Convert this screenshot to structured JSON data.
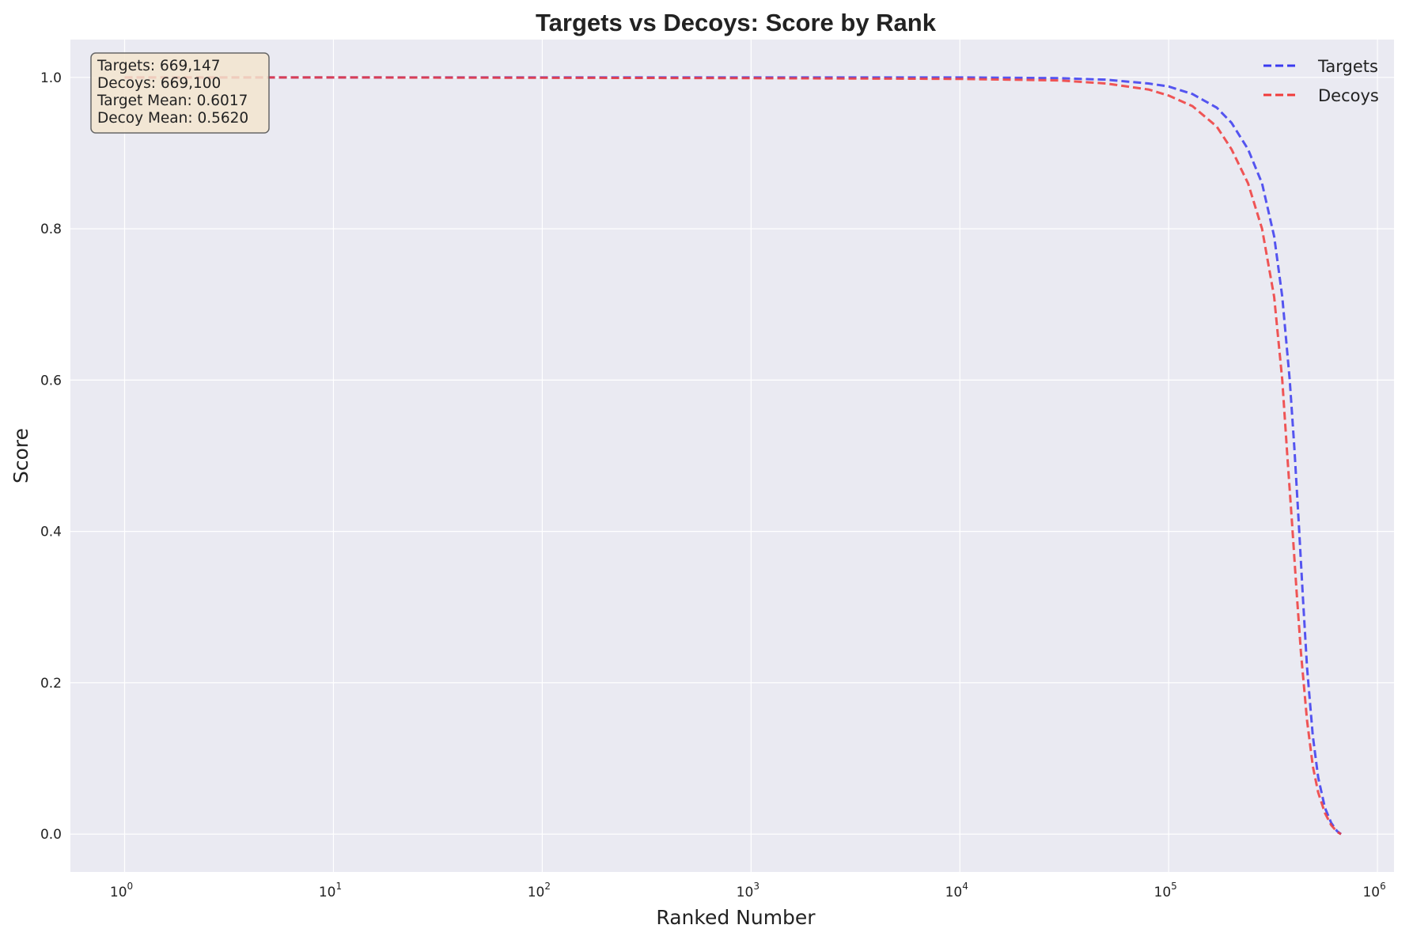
{
  "chart_data": {
    "type": "line",
    "title": "Targets vs Decoys: Score by Rank",
    "xlabel": "Ranked Number",
    "ylabel": "Score",
    "xscale": "log",
    "xlim": [
      0.55,
      1200000
    ],
    "ylim": [
      -0.05,
      1.05
    ],
    "x_ticks": [
      {
        "value": 1,
        "base": "10",
        "exp": "0"
      },
      {
        "value": 10,
        "base": "10",
        "exp": "1"
      },
      {
        "value": 100,
        "base": "10",
        "exp": "2"
      },
      {
        "value": 1000,
        "base": "10",
        "exp": "3"
      },
      {
        "value": 10000,
        "base": "10",
        "exp": "4"
      },
      {
        "value": 100000,
        "base": "10",
        "exp": "5"
      },
      {
        "value": 1000000,
        "base": "10",
        "exp": "6"
      }
    ],
    "y_ticks": [
      {
        "value": 0.0,
        "label": "0.0"
      },
      {
        "value": 0.2,
        "label": "0.2"
      },
      {
        "value": 0.4,
        "label": "0.4"
      },
      {
        "value": 0.6,
        "label": "0.6"
      },
      {
        "value": 0.8,
        "label": "0.8"
      },
      {
        "value": 1.0,
        "label": "1.0"
      }
    ],
    "grid": true,
    "legend_position": "top-right",
    "series": [
      {
        "name": "Targets",
        "color": "#3a3af0",
        "line_style": "dashed",
        "points": [
          [
            1,
            1.0
          ],
          [
            10,
            1.0
          ],
          [
            1000,
            1.0
          ],
          [
            10000,
            1.0
          ],
          [
            30000,
            0.999
          ],
          [
            50000,
            0.997
          ],
          [
            80000,
            0.992
          ],
          [
            100000,
            0.988
          ],
          [
            130000,
            0.978
          ],
          [
            170000,
            0.96
          ],
          [
            200000,
            0.94
          ],
          [
            240000,
            0.905
          ],
          [
            280000,
            0.86
          ],
          [
            320000,
            0.79
          ],
          [
            350000,
            0.71
          ],
          [
            380000,
            0.6
          ],
          [
            400000,
            0.51
          ],
          [
            420000,
            0.41
          ],
          [
            440000,
            0.31
          ],
          [
            460000,
            0.22
          ],
          [
            490000,
            0.13
          ],
          [
            520000,
            0.075
          ],
          [
            560000,
            0.035
          ],
          [
            600000,
            0.015
          ],
          [
            640000,
            0.004
          ],
          [
            669147,
            0.0
          ]
        ]
      },
      {
        "name": "Decoys",
        "color": "#f03a3a",
        "line_style": "dashed",
        "points": [
          [
            1,
            1.0
          ],
          [
            10,
            1.0
          ],
          [
            1000,
            0.999
          ],
          [
            10000,
            0.998
          ],
          [
            30000,
            0.996
          ],
          [
            50000,
            0.992
          ],
          [
            80000,
            0.984
          ],
          [
            100000,
            0.976
          ],
          [
            130000,
            0.962
          ],
          [
            170000,
            0.935
          ],
          [
            200000,
            0.905
          ],
          [
            240000,
            0.86
          ],
          [
            280000,
            0.8
          ],
          [
            320000,
            0.71
          ],
          [
            350000,
            0.6
          ],
          [
            370000,
            0.5
          ],
          [
            390000,
            0.41
          ],
          [
            410000,
            0.32
          ],
          [
            430000,
            0.24
          ],
          [
            460000,
            0.15
          ],
          [
            490000,
            0.09
          ],
          [
            520000,
            0.055
          ],
          [
            560000,
            0.028
          ],
          [
            600000,
            0.012
          ],
          [
            640000,
            0.003
          ],
          [
            669100,
            0.0
          ]
        ]
      }
    ],
    "stats_box": {
      "lines": [
        "Targets: 669,147",
        "Decoys: 669,100",
        "Target Mean: 0.6017",
        "Decoy Mean: 0.5620"
      ],
      "background": "#f3e5cf",
      "border": "#666666"
    },
    "colors": {
      "plot_background": "#eaeaf2",
      "grid": "#ffffff"
    }
  }
}
